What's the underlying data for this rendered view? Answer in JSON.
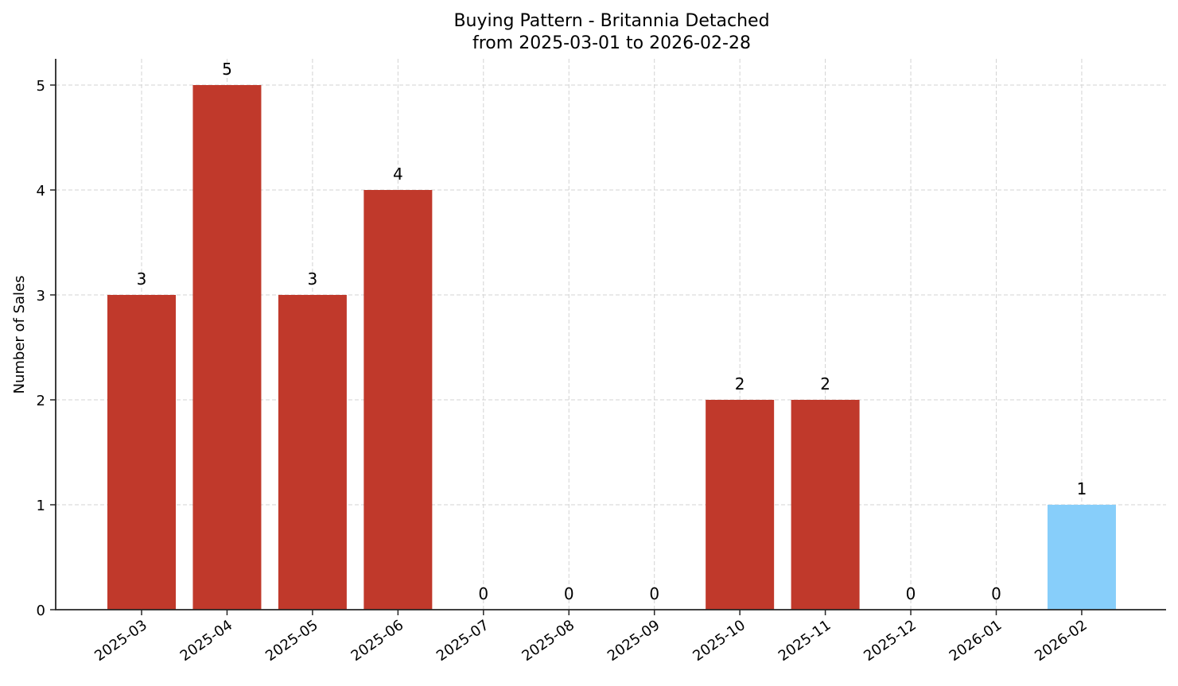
{
  "chart_data": {
    "type": "bar",
    "title": "Buying Pattern - Britannia Detached",
    "subtitle": "from 2025-03-01 to 2026-02-28",
    "xlabel": "",
    "ylabel": "Number of Sales",
    "categories": [
      "2025-03",
      "2025-04",
      "2025-05",
      "2025-06",
      "2025-07",
      "2025-08",
      "2025-09",
      "2025-10",
      "2025-11",
      "2025-12",
      "2026-01",
      "2026-02"
    ],
    "values": [
      3,
      5,
      3,
      4,
      0,
      0,
      0,
      2,
      2,
      0,
      0,
      1
    ],
    "bar_colors": [
      "#c0392b",
      "#c0392b",
      "#c0392b",
      "#c0392b",
      "#c0392b",
      "#c0392b",
      "#c0392b",
      "#c0392b",
      "#c0392b",
      "#c0392b",
      "#c0392b",
      "#87cefa"
    ],
    "data_labels": [
      "3",
      "5",
      "3",
      "4",
      "0",
      "0",
      "0",
      "2",
      "2",
      "0",
      "0",
      "1"
    ],
    "yticks": [
      0,
      1,
      2,
      3,
      4,
      5
    ],
    "ylim": [
      0,
      5.25
    ],
    "grid": true,
    "legend": null,
    "xtick_rotation": 35
  },
  "colors": {
    "primary_bar": "#c0392b",
    "highlight_bar": "#87cefa",
    "grid": "#d3d3d3",
    "axis": "#262626"
  }
}
